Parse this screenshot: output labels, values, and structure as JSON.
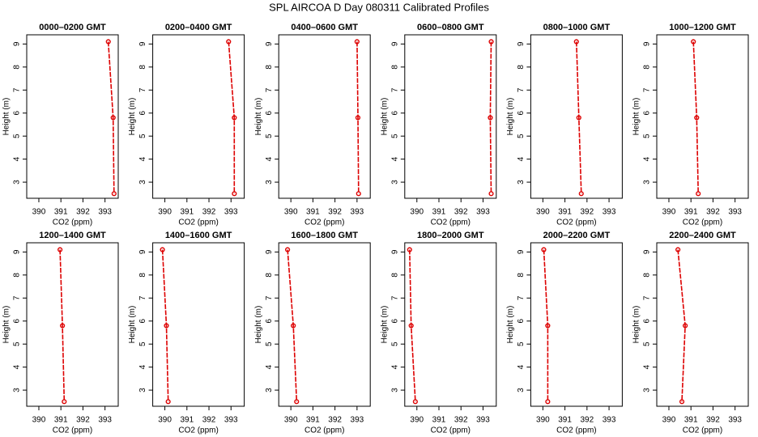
{
  "title": "SPL AIRCOA D  Day 080311  Calibrated Profiles",
  "chart_data": [
    {
      "type": "line",
      "title": "0000–0200 GMT",
      "xlabel": "CO2 (ppm)",
      "ylabel": "Height (m)",
      "color": "#dd0000",
      "x": [
        393.15,
        393.37,
        393.41
      ],
      "values": [
        9.1,
        5.8,
        2.5
      ],
      "xlim": [
        389.45,
        393.6
      ],
      "ylim": [
        2.3,
        9.4
      ],
      "xticks": [
        390,
        391,
        392,
        393
      ],
      "yticks": [
        3,
        4,
        5,
        6,
        7,
        8,
        9
      ]
    },
    {
      "type": "line",
      "title": "0200–0400 GMT",
      "xlabel": "CO2 (ppm)",
      "ylabel": "Height (m)",
      "color": "#dd0000",
      "x": [
        392.89,
        393.15,
        393.15
      ],
      "values": [
        9.1,
        5.8,
        2.5
      ],
      "xlim": [
        389.45,
        393.6
      ],
      "ylim": [
        2.3,
        9.4
      ],
      "xticks": [
        390,
        391,
        392,
        393
      ],
      "yticks": [
        3,
        4,
        5,
        6,
        7,
        8,
        9
      ]
    },
    {
      "type": "line",
      "title": "0400–0600 GMT",
      "xlabel": "CO2 (ppm)",
      "ylabel": "Height (m)",
      "color": "#dd0000",
      "x": [
        393.0,
        393.04,
        393.07
      ],
      "values": [
        9.1,
        5.8,
        2.5
      ],
      "xlim": [
        389.45,
        393.6
      ],
      "ylim": [
        2.3,
        9.4
      ],
      "xticks": [
        390,
        391,
        392,
        393
      ],
      "yticks": [
        3,
        4,
        5,
        6,
        7,
        8,
        9
      ]
    },
    {
      "type": "line",
      "title": "0600–0800 GMT",
      "xlabel": "CO2 (ppm)",
      "ylabel": "Height (m)",
      "color": "#dd0000",
      "x": [
        393.37,
        393.33,
        393.37
      ],
      "values": [
        9.1,
        5.8,
        2.5
      ],
      "xlim": [
        389.45,
        393.6
      ],
      "ylim": [
        2.3,
        9.4
      ],
      "xticks": [
        390,
        391,
        392,
        393
      ],
      "yticks": [
        3,
        4,
        5,
        6,
        7,
        8,
        9
      ]
    },
    {
      "type": "line",
      "title": "0800–1000 GMT",
      "xlabel": "CO2 (ppm)",
      "ylabel": "Height (m)",
      "color": "#dd0000",
      "x": [
        391.52,
        391.63,
        391.74
      ],
      "values": [
        9.1,
        5.8,
        2.5
      ],
      "xlim": [
        389.45,
        393.6
      ],
      "ylim": [
        2.3,
        9.4
      ],
      "xticks": [
        390,
        391,
        392,
        393
      ],
      "yticks": [
        3,
        4,
        5,
        6,
        7,
        8,
        9
      ]
    },
    {
      "type": "line",
      "title": "1000–1200 GMT",
      "xlabel": "CO2 (ppm)",
      "ylabel": "Height (m)",
      "color": "#dd0000",
      "x": [
        391.11,
        391.26,
        391.33
      ],
      "values": [
        9.1,
        5.8,
        2.5
      ],
      "xlim": [
        389.45,
        393.6
      ],
      "ylim": [
        2.3,
        9.4
      ],
      "xticks": [
        390,
        391,
        392,
        393
      ],
      "yticks": [
        3,
        4,
        5,
        6,
        7,
        8,
        9
      ]
    },
    {
      "type": "line",
      "title": "1200–1400 GMT",
      "xlabel": "CO2 (ppm)",
      "ylabel": "Height (m)",
      "color": "#dd0000",
      "x": [
        390.96,
        391.07,
        391.15
      ],
      "values": [
        9.1,
        5.8,
        2.5
      ],
      "xlim": [
        389.45,
        393.6
      ],
      "ylim": [
        2.3,
        9.4
      ],
      "xticks": [
        390,
        391,
        392,
        393
      ],
      "yticks": [
        3,
        4,
        5,
        6,
        7,
        8,
        9
      ]
    },
    {
      "type": "line",
      "title": "1400–1600 GMT",
      "xlabel": "CO2 (ppm)",
      "ylabel": "Height (m)",
      "color": "#dd0000",
      "x": [
        389.89,
        390.07,
        390.15
      ],
      "values": [
        9.1,
        5.8,
        2.5
      ],
      "xlim": [
        389.45,
        393.6
      ],
      "ylim": [
        2.3,
        9.4
      ],
      "xticks": [
        390,
        391,
        392,
        393
      ],
      "yticks": [
        3,
        4,
        5,
        6,
        7,
        8,
        9
      ]
    },
    {
      "type": "line",
      "title": "1600–1800 GMT",
      "xlabel": "CO2 (ppm)",
      "ylabel": "Height (m)",
      "color": "#dd0000",
      "x": [
        389.85,
        390.11,
        390.26
      ],
      "values": [
        9.1,
        5.8,
        2.5
      ],
      "xlim": [
        389.45,
        393.6
      ],
      "ylim": [
        2.3,
        9.4
      ],
      "xticks": [
        390,
        391,
        392,
        393
      ],
      "yticks": [
        3,
        4,
        5,
        6,
        7,
        8,
        9
      ]
    },
    {
      "type": "line",
      "title": "1800–2000 GMT",
      "xlabel": "CO2 (ppm)",
      "ylabel": "Height (m)",
      "color": "#dd0000",
      "x": [
        389.67,
        389.74,
        389.93
      ],
      "values": [
        9.1,
        5.8,
        2.5
      ],
      "xlim": [
        389.45,
        393.6
      ],
      "ylim": [
        2.3,
        9.4
      ],
      "xticks": [
        390,
        391,
        392,
        393
      ],
      "yticks": [
        3,
        4,
        5,
        6,
        7,
        8,
        9
      ]
    },
    {
      "type": "line",
      "title": "2000–2200 GMT",
      "xlabel": "CO2 (ppm)",
      "ylabel": "Height (m)",
      "color": "#dd0000",
      "x": [
        390.04,
        390.22,
        390.22
      ],
      "values": [
        9.1,
        5.8,
        2.5
      ],
      "xlim": [
        389.45,
        393.6
      ],
      "ylim": [
        2.3,
        9.4
      ],
      "xticks": [
        390,
        391,
        392,
        393
      ],
      "yticks": [
        3,
        4,
        5,
        6,
        7,
        8,
        9
      ]
    },
    {
      "type": "line",
      "title": "2200–2400 GMT",
      "xlabel": "CO2 (ppm)",
      "ylabel": "Height (m)",
      "color": "#dd0000",
      "x": [
        390.41,
        390.74,
        390.59
      ],
      "values": [
        9.1,
        5.8,
        2.5
      ],
      "xlim": [
        389.45,
        393.6
      ],
      "ylim": [
        2.3,
        9.4
      ],
      "xticks": [
        390,
        391,
        392,
        393
      ],
      "yticks": [
        3,
        4,
        5,
        6,
        7,
        8,
        9
      ]
    }
  ]
}
